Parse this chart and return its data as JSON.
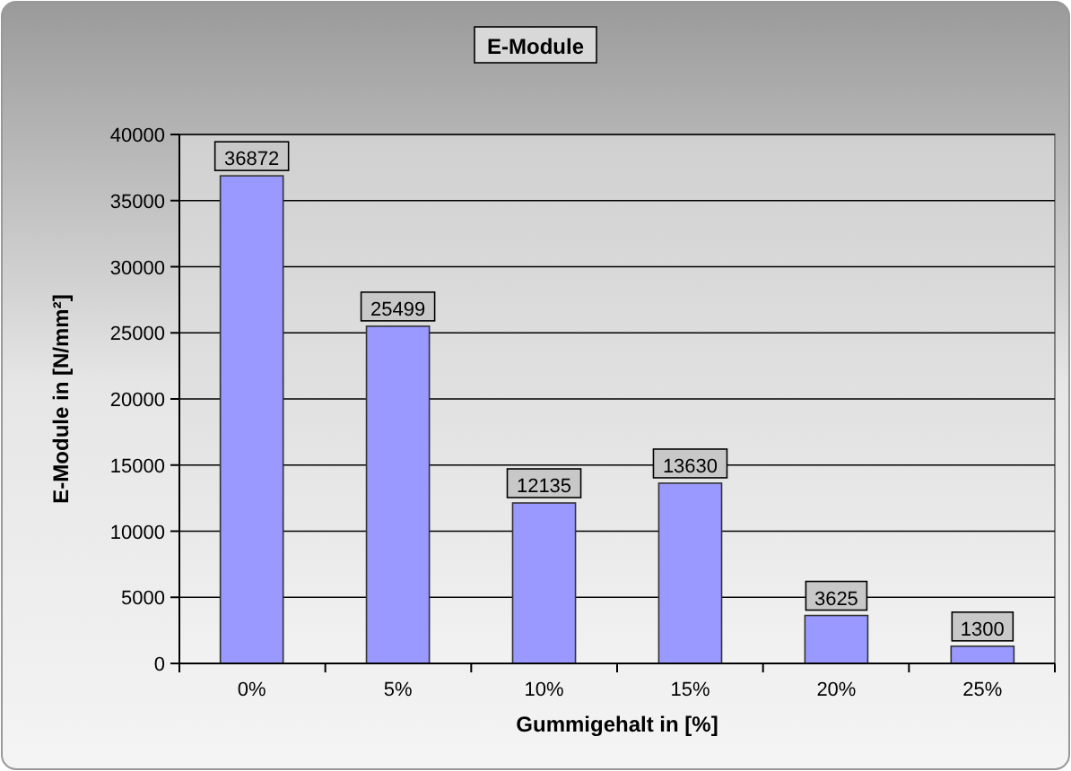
{
  "chart_data": {
    "type": "bar",
    "title": "E-Module",
    "xlabel": "Gummigehalt in [%]",
    "ylabel": "E-Module in [N/mm²]",
    "categories": [
      "0%",
      "5%",
      "10%",
      "15%",
      "20%",
      "25%"
    ],
    "values": [
      36872,
      25499,
      12135,
      13630,
      3625,
      1300
    ],
    "color": "#9999ff",
    "ylim": [
      0,
      40000
    ],
    "yticks": [
      0,
      5000,
      10000,
      15000,
      20000,
      25000,
      30000,
      35000,
      40000
    ],
    "grid": "y",
    "data_labels": true
  }
}
